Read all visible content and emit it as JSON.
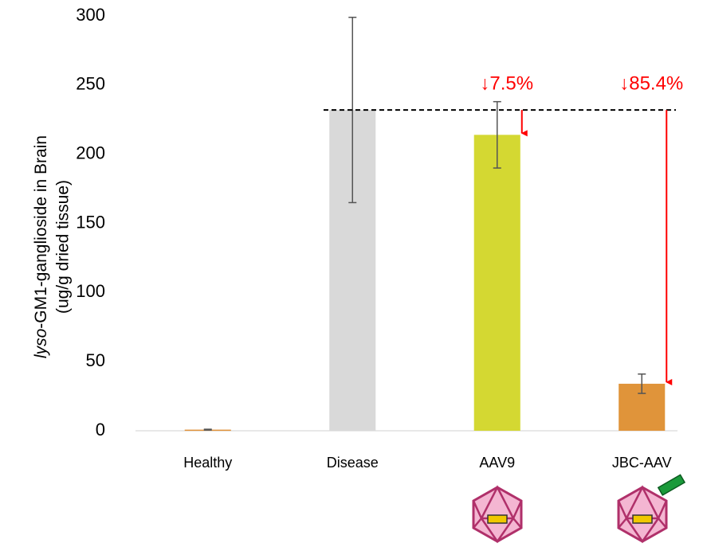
{
  "chart_data": {
    "type": "bar",
    "y_label": {
      "line1_italic": "lyso",
      "line1": "-GM1-ganglioside in Brain",
      "line2": "(ug/g dried tissue)"
    },
    "categories": [
      "Healthy",
      "Disease",
      "AAV9",
      "JBC-AAV"
    ],
    "values": [
      0.8,
      232,
      214,
      34
    ],
    "errors": [
      0.3,
      67,
      24,
      7
    ],
    "colors": [
      "#e0923a",
      "#d9d9d9",
      "#d4d832",
      "#e0943a"
    ],
    "ylim": [
      0,
      300
    ],
    "yticks": [
      0,
      50,
      100,
      150,
      200,
      250,
      300
    ],
    "grid": false,
    "reference_category": "Disease",
    "annotations": [
      {
        "text": "↓7.5%",
        "category": "AAV9",
        "color": "#ff0000"
      },
      {
        "text": "↓85.4%",
        "category": "JBC-AAV",
        "color": "#ff0000"
      }
    ]
  }
}
